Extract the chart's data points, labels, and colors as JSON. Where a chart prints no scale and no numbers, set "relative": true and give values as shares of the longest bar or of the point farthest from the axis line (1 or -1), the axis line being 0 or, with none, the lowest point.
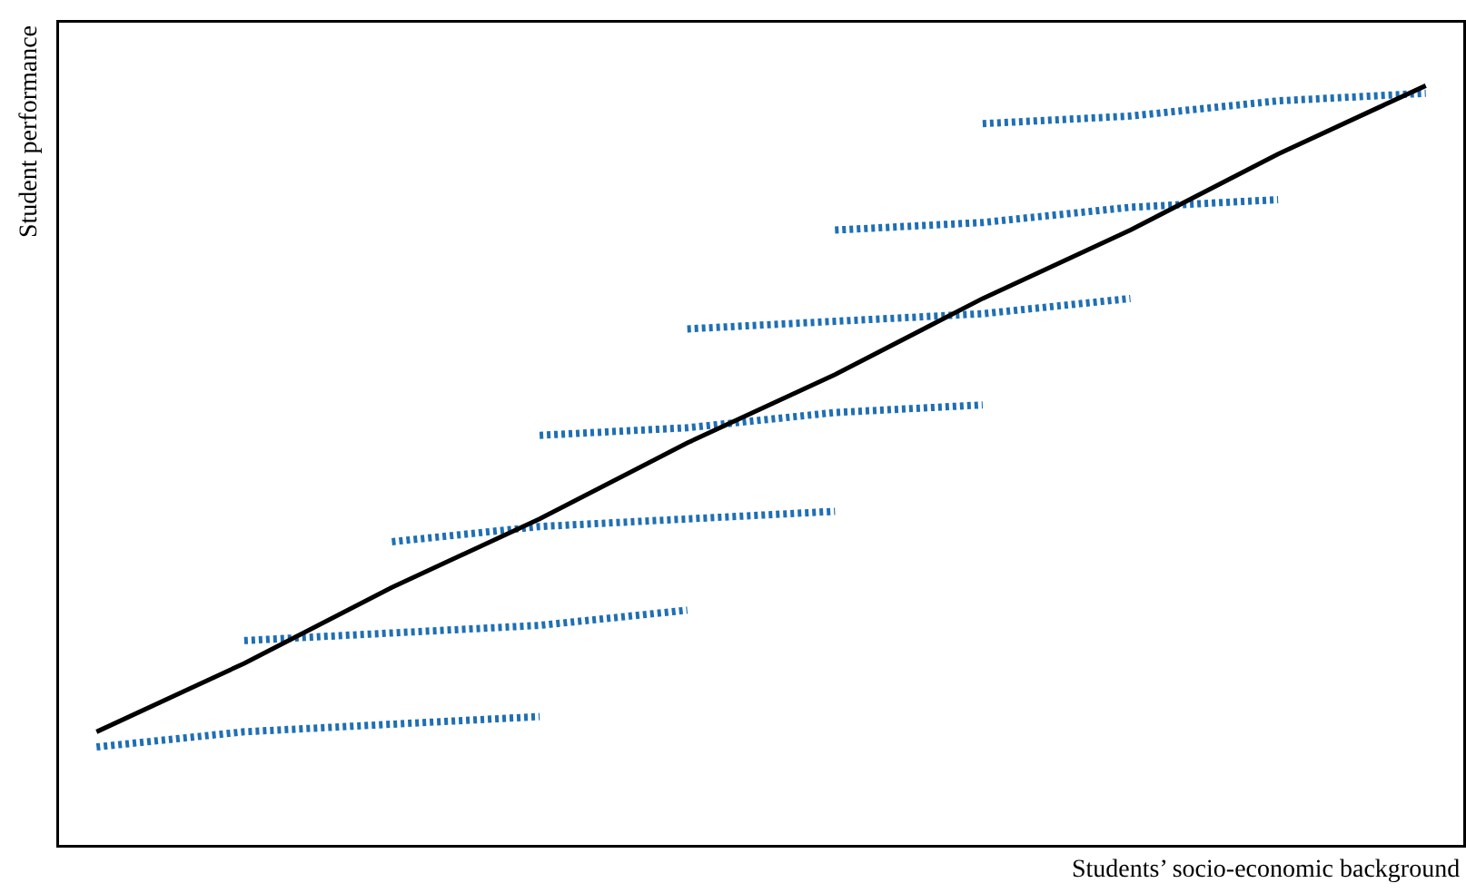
{
  "chart_data": {
    "type": "line",
    "relative": true,
    "xlabel": "Students’ socio-economic background",
    "ylabel": "Student performance",
    "categories": [
      null,
      null,
      null,
      null,
      null,
      null,
      null,
      null,
      null,
      null
    ],
    "grid": false,
    "marker": "none",
    "line_style": "solid",
    "series": [
      {
        "color": "#1f6fb4",
        "line_style": "dotted",
        "values": [
          0.13,
          0.15,
          0.16,
          0.17,
          null,
          null,
          null,
          null,
          null,
          null
        ]
      },
      {
        "color": "#1f6fb4",
        "line_style": "dotted",
        "values": [
          null,
          0.27,
          0.28,
          0.29,
          0.31,
          null,
          null,
          null,
          null,
          null
        ]
      },
      {
        "color": "#1f6fb4",
        "line_style": "dotted",
        "values": [
          null,
          null,
          0.4,
          0.42,
          0.43,
          0.44,
          null,
          null,
          null,
          null
        ]
      },
      {
        "color": "#1f6fb4",
        "line_style": "dotted",
        "values": [
          null,
          null,
          null,
          0.54,
          0.55,
          0.57,
          0.58,
          null,
          null,
          null
        ]
      },
      {
        "color": "#1f6fb4",
        "line_style": "dotted",
        "values": [
          null,
          null,
          null,
          null,
          0.68,
          0.69,
          0.7,
          0.72,
          null,
          null
        ]
      },
      {
        "color": "#1f6fb4",
        "line_style": "dotted",
        "values": [
          null,
          null,
          null,
          null,
          null,
          0.81,
          0.82,
          0.84,
          0.85,
          null
        ]
      },
      {
        "color": "#1f6fb4",
        "line_style": "dotted",
        "values": [
          null,
          null,
          null,
          null,
          null,
          null,
          0.95,
          0.96,
          0.98,
          0.99
        ]
      },
      {
        "color": "#000000",
        "values": [
          0.15,
          0.24,
          0.34,
          0.43,
          0.53,
          0.62,
          0.72,
          0.81,
          0.91,
          1.0
        ]
      }
    ]
  }
}
